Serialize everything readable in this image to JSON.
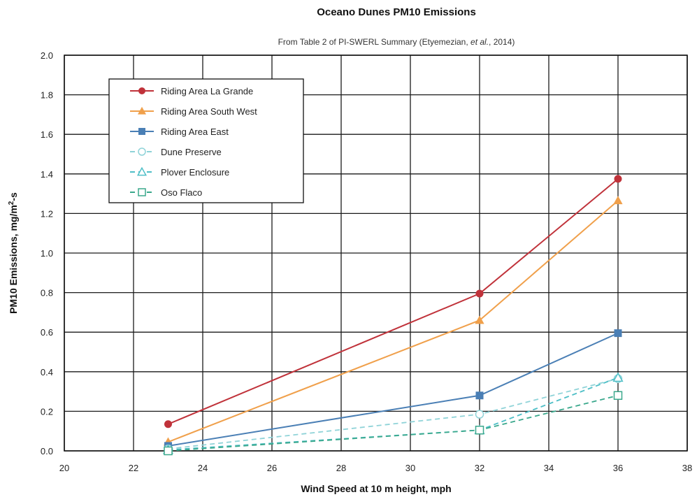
{
  "chart_data": {
    "type": "line",
    "title": "Oceano Dunes PM10 Emissions",
    "subtitle_parts": [
      "From Table 2 of PI-SWERL Summary (Etyemezian, ",
      "et al.",
      ", 2014)"
    ],
    "xlabel": "Wind Speed at 10 m height, mph",
    "ylabel_parts": [
      "PM10 Emissions, mg/m",
      "2",
      "-s"
    ],
    "xlim": [
      20,
      38
    ],
    "ylim": [
      0,
      2.0
    ],
    "x_ticks": [
      20,
      22,
      24,
      26,
      28,
      30,
      32,
      34,
      36,
      38
    ],
    "y_ticks": [
      0.0,
      0.2,
      0.4,
      0.6,
      0.8,
      1.0,
      1.2,
      1.4,
      1.6,
      1.8,
      2.0
    ],
    "x_tick_labels": [
      "20",
      "22",
      "24",
      "26",
      "28",
      "30",
      "32",
      "34",
      "36",
      "38"
    ],
    "y_tick_labels": [
      "0.0",
      "0.2",
      "0.4",
      "0.6",
      "0.8",
      "1.0",
      "1.2",
      "1.4",
      "1.6",
      "1.8",
      "2.0"
    ],
    "grid": true,
    "legend_position": "top-left",
    "x": [
      23,
      32,
      36
    ],
    "series": [
      {
        "name": "Riding Area La Grande",
        "values": [
          0.135,
          0.795,
          1.375
        ],
        "color": "#c0323a",
        "marker": "circle",
        "filled": true,
        "dashed": false
      },
      {
        "name": "Riding Area South West",
        "values": [
          0.045,
          0.66,
          1.265
        ],
        "color": "#f0a04b",
        "marker": "triangle",
        "filled": true,
        "dashed": false
      },
      {
        "name": "Riding Area East",
        "values": [
          0.025,
          0.28,
          0.595
        ],
        "color": "#4a7fb5",
        "marker": "square",
        "filled": true,
        "dashed": false
      },
      {
        "name": "Dune Preserve",
        "values": [
          0.01,
          0.185,
          0.365
        ],
        "color": "#8fd3d8",
        "marker": "circle",
        "filled": false,
        "dashed": true
      },
      {
        "name": "Plover Enclosure",
        "values": [
          0.005,
          0.105,
          0.37
        ],
        "color": "#4fbfc7",
        "marker": "triangle",
        "filled": false,
        "dashed": true
      },
      {
        "name": "Oso Flaco",
        "values": [
          0.0,
          0.105,
          0.28
        ],
        "color": "#3aa88c",
        "marker": "square",
        "filled": false,
        "dashed": true
      }
    ]
  }
}
